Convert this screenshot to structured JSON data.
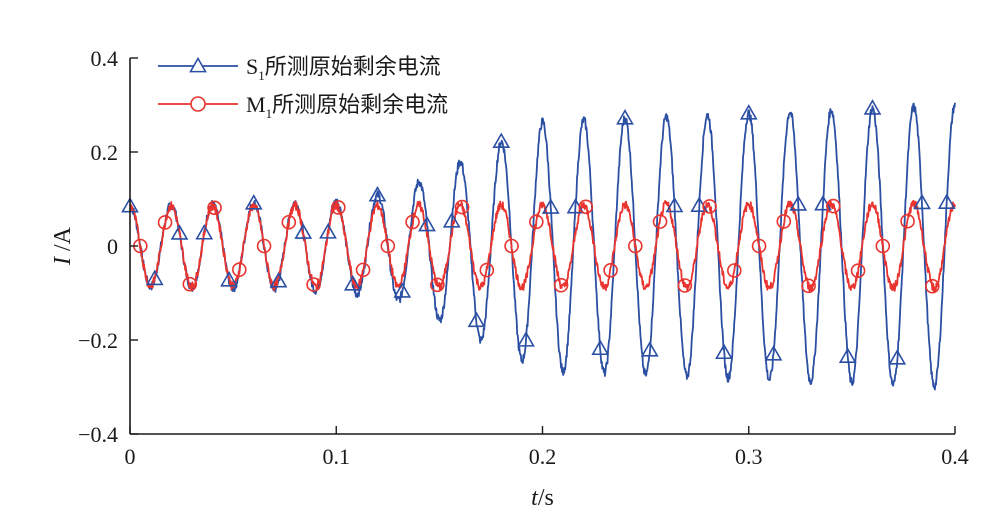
{
  "chart_data": {
    "type": "line",
    "xlabel": {
      "italic": "t",
      "rest": "/s"
    },
    "ylabel": {
      "italic": "I",
      "rest": " /A"
    },
    "xlim": [
      0,
      0.4
    ],
    "ylim": [
      -0.4,
      0.4
    ],
    "xticks": [
      0,
      0.1,
      0.2,
      0.3,
      0.4
    ],
    "xtick_labels": [
      "0",
      "0.1",
      "0.2",
      "0.3",
      "0.4"
    ],
    "yticks": [
      0.4,
      0.2,
      0,
      -0.2,
      -0.4
    ],
    "ytick_labels": [
      "0.4",
      "0.2",
      "0",
      "−0.2",
      "−0.4"
    ],
    "legend_position": "top-left",
    "series": [
      {
        "name": "S1所测原始剩余电流",
        "legend": {
          "main": "S",
          "sub": "1",
          "rest": "所测原始剩余电流"
        },
        "color": "#2b4fa3",
        "marker": "triangle",
        "frequency_hz": 50,
        "amplitude_points": [
          [
            0,
            0.085
          ],
          [
            0.1,
            0.095
          ],
          [
            0.13,
            0.115
          ],
          [
            0.2,
            0.265
          ],
          [
            0.4,
            0.3
          ]
        ],
        "markers_x": [
          0,
          0.012,
          0.024,
          0.036,
          0.048,
          0.06,
          0.072,
          0.084,
          0.096,
          0.108,
          0.12,
          0.132,
          0.144,
          0.156,
          0.168,
          0.18,
          0.192,
          0.204,
          0.216,
          0.228,
          0.24,
          0.252,
          0.264,
          0.276,
          0.288,
          0.3,
          0.312,
          0.324,
          0.336,
          0.348,
          0.36,
          0.372,
          0.384,
          0.396
        ]
      },
      {
        "name": "M1所测原始剩余电流",
        "legend": {
          "main": "M",
          "sub": "1",
          "rest": "所测原始剩余电流"
        },
        "color": "#e8332e",
        "marker": "circle",
        "frequency_hz": 50,
        "amplitude_points": [
          [
            0,
            0.085
          ],
          [
            0.4,
            0.09
          ]
        ],
        "markers_x": [
          0.005,
          0.017,
          0.029,
          0.041,
          0.053,
          0.065,
          0.077,
          0.089,
          0.101,
          0.113,
          0.125,
          0.137,
          0.149,
          0.161,
          0.173,
          0.185,
          0.197,
          0.209,
          0.221,
          0.233,
          0.245,
          0.257,
          0.269,
          0.281,
          0.293,
          0.305,
          0.317,
          0.329,
          0.341,
          0.353,
          0.365,
          0.377,
          0.389
        ]
      }
    ]
  }
}
